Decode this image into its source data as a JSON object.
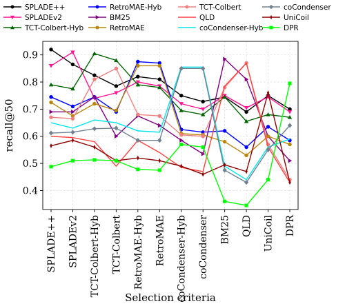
{
  "chart_data": {
    "type": "line",
    "title": "",
    "xlabel": "Selection criteria",
    "ylabel": "recall@50",
    "ylim": [
      0.33,
      0.95
    ],
    "yticks": [
      "0.4",
      "0.5",
      "0.6",
      "0.7",
      "0.8",
      "0.9"
    ],
    "grid": true,
    "legend_position": "top",
    "categories": [
      "SPLADE++",
      "SPLADEv2",
      "TCT-Colbert-Hyb",
      "TCT-Colbert",
      "RetroMAE-Hyb",
      "RetroMAE",
      "coCondenser-Hyb",
      "coCondenser",
      "BM25",
      "QLD",
      "UniCoil",
      "DPR"
    ],
    "series": [
      {
        "name": "SPLADE++",
        "color": "#000000",
        "marker": "circle",
        "values": [
          0.92,
          0.865,
          0.825,
          0.785,
          0.82,
          0.81,
          0.75,
          0.728,
          0.745,
          0.69,
          0.75,
          0.7
        ]
      },
      {
        "name": "SPLADEv2",
        "color": "#ff1493",
        "marker": "triangle-down",
        "values": [
          0.86,
          0.91,
          0.74,
          0.76,
          0.8,
          0.785,
          0.72,
          0.7,
          0.75,
          0.705,
          0.745,
          0.69
        ]
      },
      {
        "name": "TCT-Colbert-Hyb",
        "color": "#006400",
        "marker": "triangle-up",
        "values": [
          0.79,
          0.775,
          0.905,
          0.88,
          0.79,
          0.78,
          0.695,
          0.68,
          0.745,
          0.655,
          0.68,
          0.67
        ]
      },
      {
        "name": "RetroMAE-Hyb",
        "color": "#0000ff",
        "marker": "circle",
        "values": [
          0.745,
          0.71,
          0.745,
          0.69,
          0.875,
          0.87,
          0.625,
          0.615,
          0.62,
          0.56,
          0.635,
          0.585
        ]
      },
      {
        "name": "BM25",
        "color": "#800080",
        "marker": "triangle-right",
        "values": [
          0.69,
          0.69,
          0.745,
          0.6,
          0.675,
          0.64,
          0.585,
          0.535,
          0.885,
          0.81,
          0.6,
          0.51
        ]
      },
      {
        "name": "RetroMAE",
        "color": "#b8860b",
        "marker": "circle",
        "values": [
          0.725,
          0.675,
          0.72,
          0.695,
          0.86,
          0.86,
          0.61,
          0.605,
          0.58,
          0.53,
          0.6,
          0.57
        ]
      },
      {
        "name": "TCT-Colbert",
        "color": "#f08080",
        "marker": "circle",
        "values": [
          0.67,
          0.665,
          0.81,
          0.85,
          0.68,
          0.675,
          0.605,
          0.6,
          0.78,
          0.87,
          0.57,
          0.44
        ]
      },
      {
        "name": "QLD",
        "color": "#ff4040",
        "marker": "none",
        "values": [
          0.6,
          0.595,
          0.58,
          0.49,
          0.585,
          0.54,
          0.485,
          0.47,
          0.785,
          0.87,
          0.56,
          0.43
        ]
      },
      {
        "name": "coCondenser-Hyb",
        "color": "#00e5ee",
        "marker": "none",
        "values": [
          0.65,
          0.63,
          0.66,
          0.65,
          0.62,
          0.615,
          0.855,
          0.855,
          0.49,
          0.44,
          0.56,
          0.59
        ]
      },
      {
        "name": "coCondenser",
        "color": "#708090",
        "marker": "diamond",
        "values": [
          0.612,
          0.615,
          0.628,
          0.63,
          0.585,
          0.585,
          0.85,
          0.85,
          0.475,
          0.43,
          0.55,
          0.64
        ]
      },
      {
        "name": "UniCoil",
        "color": "#8b0000",
        "marker": "diamond-thin",
        "values": [
          0.565,
          0.585,
          0.56,
          0.51,
          0.52,
          0.51,
          0.49,
          0.46,
          0.495,
          0.47,
          0.76,
          0.43
        ]
      },
      {
        "name": "DPR",
        "color": "#00ff00",
        "marker": "square",
        "values": [
          0.488,
          0.51,
          0.513,
          0.51,
          0.478,
          0.475,
          0.57,
          0.56,
          0.36,
          0.345,
          0.44,
          0.795
        ]
      }
    ]
  }
}
